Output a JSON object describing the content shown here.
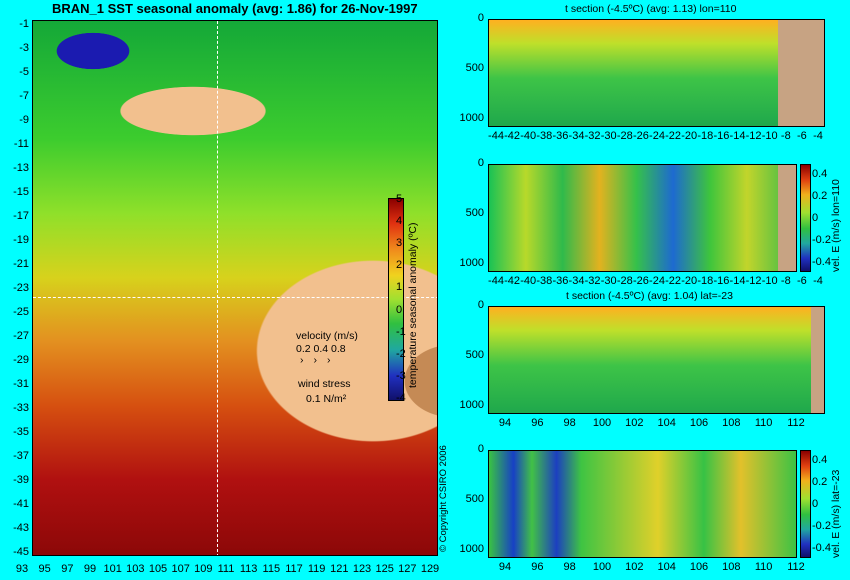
{
  "title": "BRAN_1 SST seasonal anomaly (avg: 1.86) for 26-Nov-1997",
  "copyright": "© Copyright CSIRO 2006",
  "colors": {
    "background": "#00ffff",
    "land": "#f2c08e",
    "section_mask": "#c7a383"
  },
  "map": {
    "lat_ticks": [
      "-1",
      "-3",
      "-5",
      "-7",
      "-9",
      "-11",
      "-13",
      "-15",
      "-17",
      "-19",
      "-21",
      "-23",
      "-25",
      "-27",
      "-29",
      "-31",
      "-33",
      "-35",
      "-37",
      "-39",
      "-41",
      "-43",
      "-45"
    ],
    "lon_ticks": [
      "93",
      "95",
      "97",
      "99",
      "101",
      "103",
      "105",
      "107",
      "109",
      "111",
      "113",
      "115",
      "117",
      "119",
      "121",
      "123",
      "125",
      "127",
      "129"
    ],
    "colorbar": {
      "label": "temperature seasonal anomaly (ºC)",
      "ticks": [
        "5",
        "4",
        "3",
        "2",
        "1",
        "0",
        "-1",
        "-2",
        "-3",
        "-4"
      ]
    },
    "legend": {
      "velocity_title": "velocity (m/s)",
      "velocity_scale": "0.2 0.4 0.8",
      "wind_title": "wind stress",
      "wind_scale": "0.1 N/m²"
    }
  },
  "panels": [
    {
      "title": "t section (-4.5ºC) (avg: 1.13) lon=110",
      "y_ticks": [
        "0",
        "500",
        "1000"
      ],
      "x_ticks": [
        "-44",
        "-42",
        "-40",
        "-38",
        "-36",
        "-34",
        "-32",
        "-30",
        "-28",
        "-26",
        "-24",
        "-22",
        "-20",
        "-18",
        "-16",
        "-14",
        "-12",
        "-10",
        "-8",
        "-6",
        "-4"
      ]
    },
    {
      "title": "",
      "y_ticks": [
        "0",
        "500",
        "1000"
      ],
      "x_ticks": [
        "-44",
        "-42",
        "-40",
        "-38",
        "-36",
        "-34",
        "-32",
        "-30",
        "-28",
        "-26",
        "-24",
        "-22",
        "-20",
        "-18",
        "-16",
        "-14",
        "-12",
        "-10",
        "-8",
        "-6",
        "-4"
      ],
      "colorbar_label": "vel. E (m/s) lon=110",
      "colorbar_ticks": [
        "0.4",
        "0.2",
        "0",
        "-0.2",
        "-0.4"
      ]
    },
    {
      "title": "t section (-4.5ºC) (avg: 1.04) lat=-23",
      "y_ticks": [
        "0",
        "500",
        "1000"
      ],
      "x_ticks": [
        "94",
        "96",
        "98",
        "100",
        "102",
        "104",
        "106",
        "108",
        "110",
        "112"
      ]
    },
    {
      "title": "",
      "y_ticks": [
        "0",
        "500",
        "1000"
      ],
      "x_ticks": [
        "94",
        "96",
        "98",
        "100",
        "102",
        "104",
        "106",
        "108",
        "110",
        "112"
      ],
      "colorbar_label": "vel. E (m/s) lat=-23",
      "colorbar_ticks": [
        "0.4",
        "0.2",
        "0",
        "-0.2",
        "-0.4"
      ]
    }
  ],
  "chart_data": [
    {
      "type": "heatmap",
      "title": "BRAN_1 SST seasonal anomaly (avg: 1.86) for 26-Nov-1997",
      "xlabel": "",
      "ylabel": "",
      "xlim": [
        93,
        129
      ],
      "ylim": [
        -45,
        0
      ],
      "clim": [
        -4,
        5
      ],
      "colorbar_label": "temperature seasonal anomaly (ºC)",
      "average": 1.86,
      "section_lines": {
        "lon": 110,
        "lat": -23
      }
    },
    {
      "type": "heatmap",
      "title": "t section (-4.5ºC) (avg: 1.13) lon=110",
      "average": 1.13,
      "xlim": [
        -45,
        -3
      ],
      "ylim": [
        1050,
        0
      ]
    },
    {
      "type": "heatmap",
      "title": "",
      "colorbar_label": "vel. E (m/s) lon=110",
      "clim": [
        -0.4,
        0.4
      ],
      "xlim": [
        -45,
        -3
      ],
      "ylim": [
        1050,
        0
      ]
    },
    {
      "type": "heatmap",
      "title": "t section (-4.5ºC) (avg: 1.04) lat=-23",
      "average": 1.04,
      "xlim": [
        93,
        113.5
      ],
      "ylim": [
        1050,
        0
      ]
    },
    {
      "type": "heatmap",
      "title": "",
      "colorbar_label": "vel. E (m/s) lat=-23",
      "clim": [
        -0.4,
        0.4
      ],
      "xlim": [
        93,
        113.5
      ],
      "ylim": [
        1050,
        0
      ]
    }
  ]
}
